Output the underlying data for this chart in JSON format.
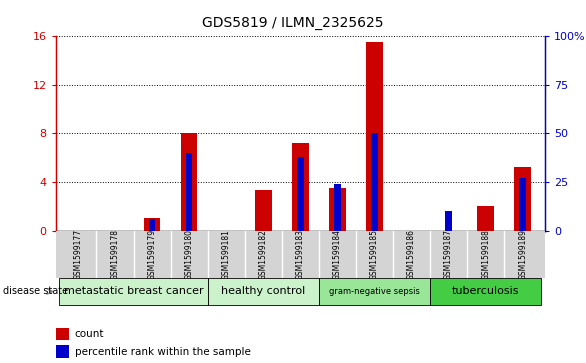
{
  "title": "GDS5819 / ILMN_2325625",
  "samples": [
    "GSM1599177",
    "GSM1599178",
    "GSM1599179",
    "GSM1599180",
    "GSM1599181",
    "GSM1599182",
    "GSM1599183",
    "GSM1599184",
    "GSM1599185",
    "GSM1599186",
    "GSM1599187",
    "GSM1599188",
    "GSM1599189"
  ],
  "counts": [
    0,
    0,
    1.0,
    8.0,
    0,
    3.3,
    7.2,
    3.5,
    15.5,
    0,
    0,
    2.0,
    5.2
  ],
  "percentiles": [
    0,
    0,
    6,
    40,
    0,
    0,
    38,
    24,
    50,
    0,
    10,
    0,
    27
  ],
  "disease_groups": [
    {
      "label": "metastatic breast cancer",
      "start": 0,
      "end": 3,
      "color": "#ccf2cc"
    },
    {
      "label": "healthy control",
      "start": 4,
      "end": 6,
      "color": "#ccf2cc"
    },
    {
      "label": "gram-negative sepsis",
      "start": 7,
      "end": 9,
      "color": "#99e699"
    },
    {
      "label": "tuberculosis",
      "start": 10,
      "end": 12,
      "color": "#44cc44"
    }
  ],
  "ylim_left": [
    0,
    16
  ],
  "ylim_right": [
    0,
    100
  ],
  "yticks_left": [
    0,
    4,
    8,
    12,
    16
  ],
  "yticks_right": [
    0,
    25,
    50,
    75,
    100
  ],
  "bar_color_count": "#cc0000",
  "bar_color_pct": "#0000cc",
  "red_bar_width": 0.45,
  "blue_bar_width": 0.18,
  "bg_color": "#ffffff",
  "plot_bg_color": "#ffffff",
  "label_bg_color": "#d4d4d4",
  "right_ytick_labels": [
    "0",
    "25",
    "50",
    "75",
    "100%"
  ],
  "gram_neg_fontsize": 6,
  "other_group_fontsize": 8
}
